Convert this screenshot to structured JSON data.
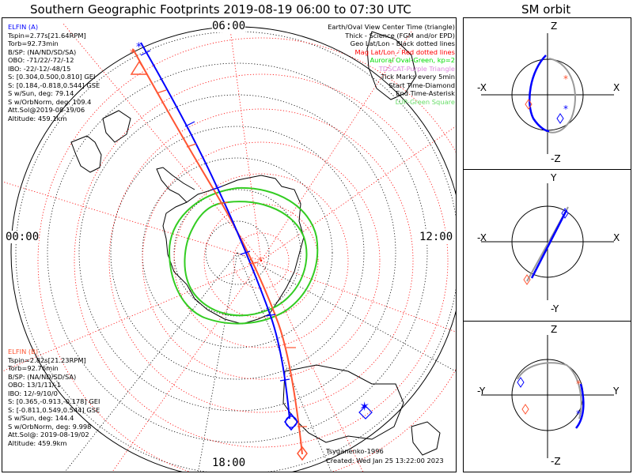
{
  "title": "Southern Geographic Footprints 2019-08-19 06:00 to 07:30 UTC",
  "sm_orbit_title": "SM orbit",
  "hour_labels": {
    "top": "06:00",
    "left": "00:00",
    "right": "12:00",
    "bottom": "18:00"
  },
  "legend": [
    {
      "text": "Earth/Oval View Center Time (triangle)",
      "color": "#000000"
    },
    {
      "text": "Thick - Science (FGM and/or EPD)",
      "color": "#000000"
    },
    {
      "text": "Geo Lat/Lon - Black dotted lines",
      "color": "#000000"
    },
    {
      "text": "Mag Lat/Lon - Red dotted lines",
      "color": "#ff0000"
    },
    {
      "text": "Auroral Oval-Green, kp=2",
      "color": "#00dd00"
    },
    {
      "text": "TDSCAT-Purple Triangle",
      "color": "#dd88dd"
    },
    {
      "text": "Tick Marks every 5min",
      "color": "#000000"
    },
    {
      "text": "Start Time-Diamond",
      "color": "#000000"
    },
    {
      "text": "End Time-Asterisk",
      "color": "#000000"
    },
    {
      "text": "LUP-Green Square",
      "color": "#66dd66"
    }
  ],
  "elfin_a": {
    "name": "ELFIN (A)",
    "color": "#0000ff",
    "lines": [
      "Tspin=2.77s[21.64RPM]",
      "Torb=92.73min",
      "B/SP: (NA/ND/SD/SA)",
      "OBO: -71/22/-72/-12",
      "IBO: -22/-12/-48/15",
      "S: [0.304,0.500,0.810] GEI",
      "S: [0.184,-0.818,0.544] GSE",
      "S w/Sun, deg: 79.14",
      "S w/OrbNorm, deg: 109.4",
      "Att.Sol@2019-08-19/06",
      "Altitude: 459.1km"
    ]
  },
  "elfin_b": {
    "name": "ELFIN (B)",
    "color": "#ff5533",
    "lines": [
      "Tspin=2.82s[21.23RPM]",
      "Torb=92.76min",
      "B/SP: (NA/ND/SD/SA)",
      "OBO: 13/1/11/-1",
      "IBO: 12/-9/10/0",
      "S: [0.365,-0.913,-0.178] GEI",
      "S: [-0.811,0.549,0.544] GSE",
      "S w/Sun, deg: 144.4",
      "S w/OrbNorm, deg: 9.998",
      "Att.Sol@: 2019-08-19/02",
      "Altitude: 459.9km"
    ]
  },
  "credit": "Tsyganenko-1996",
  "created": "Created: Wed Jan 25 13:22:00 2023",
  "sm_panels": [
    {
      "top": "Z",
      "bottom": "-Z",
      "left": "-X",
      "right": "X"
    },
    {
      "top": "Y",
      "bottom": "-Y",
      "left": "-X",
      "right": "X"
    },
    {
      "top": "Z",
      "bottom": "-Z",
      "left": "-Y",
      "right": "Y"
    }
  ],
  "colors": {
    "geo_grid": "#000000",
    "mag_grid": "#ff0000",
    "oval": "#00cc00",
    "elfin_a": "#0000ff",
    "elfin_b": "#ff5533",
    "orbit_gray": "#aaaaaa"
  }
}
